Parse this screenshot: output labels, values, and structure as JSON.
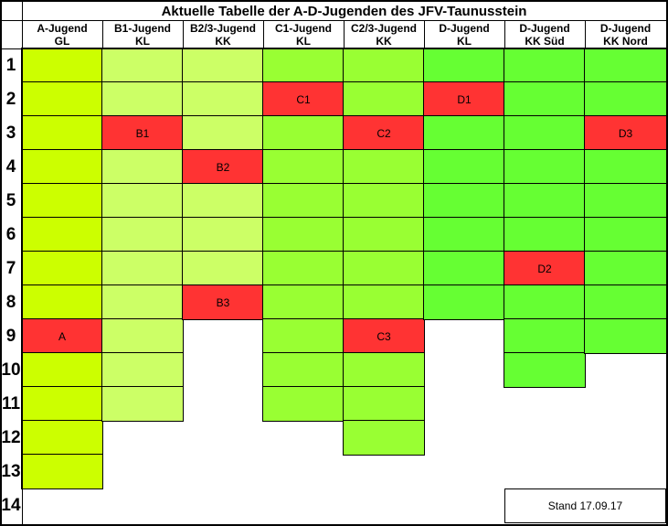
{
  "title": "Aktuelle Tabelle der A-D-Jugenden des JFV-Taunusstein",
  "columns": [
    {
      "line1": "A-Jugend",
      "line2": "GL",
      "rows": 13,
      "fill": "#ccff00"
    },
    {
      "line1": "B1-Jugend",
      "line2": "KL",
      "rows": 11,
      "fill": "#ccff66"
    },
    {
      "line1": "B2/3-Jugend",
      "line2": "KK",
      "rows": 8,
      "fill": "#ccff66"
    },
    {
      "line1": "C1-Jugend",
      "line2": "KL",
      "rows": 11,
      "fill": "#99ff33"
    },
    {
      "line1": "C2/3-Jugend",
      "line2": "KK",
      "rows": 12,
      "fill": "#99ff33"
    },
    {
      "line1": "D-Jugend",
      "line2": "KL",
      "rows": 8,
      "fill": "#66ff33"
    },
    {
      "line1": "D-Jugend",
      "line2": "KK Süd",
      "rows": 10,
      "fill": "#66ff33"
    },
    {
      "line1": "D-Jugend",
      "line2": "KK Nord",
      "rows": 9,
      "fill": "#66ff33"
    }
  ],
  "row_numbers": [
    "1",
    "2",
    "3",
    "4",
    "5",
    "6",
    "7",
    "8",
    "9",
    "10",
    "11",
    "12",
    "13",
    "14"
  ],
  "highlights": [
    {
      "col": 0,
      "row": 9,
      "label": "A"
    },
    {
      "col": 1,
      "row": 3,
      "label": "B1"
    },
    {
      "col": 2,
      "row": 4,
      "label": "B2"
    },
    {
      "col": 2,
      "row": 8,
      "label": "B3"
    },
    {
      "col": 3,
      "row": 2,
      "label": "C1"
    },
    {
      "col": 4,
      "row": 3,
      "label": "C2"
    },
    {
      "col": 4,
      "row": 9,
      "label": "C3"
    },
    {
      "col": 5,
      "row": 2,
      "label": "D1"
    },
    {
      "col": 6,
      "row": 7,
      "label": "D2"
    },
    {
      "col": 7,
      "row": 3,
      "label": "D3"
    }
  ],
  "highlight_color": "#ff3333",
  "stand": "Stand 17.09.17"
}
